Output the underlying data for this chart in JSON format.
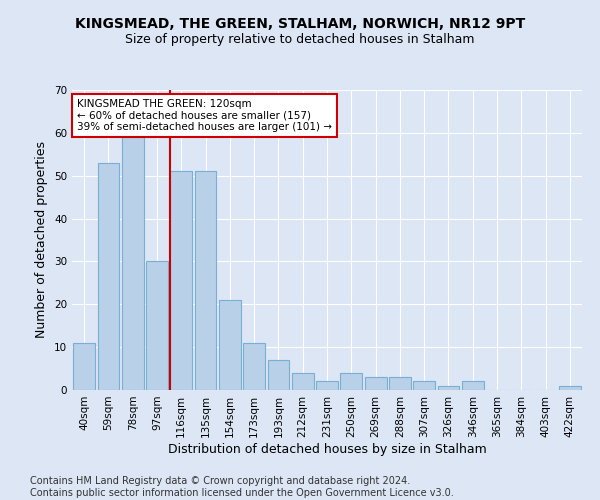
{
  "title1": "KINGSMEAD, THE GREEN, STALHAM, NORWICH, NR12 9PT",
  "title2": "Size of property relative to detached houses in Stalham",
  "xlabel": "Distribution of detached houses by size in Stalham",
  "ylabel": "Number of detached properties",
  "footnote": "Contains HM Land Registry data © Crown copyright and database right 2024.\nContains public sector information licensed under the Open Government Licence v3.0.",
  "categories": [
    "40sqm",
    "59sqm",
    "78sqm",
    "97sqm",
    "116sqm",
    "135sqm",
    "154sqm",
    "173sqm",
    "193sqm",
    "212sqm",
    "231sqm",
    "250sqm",
    "269sqm",
    "288sqm",
    "307sqm",
    "326sqm",
    "346sqm",
    "365sqm",
    "384sqm",
    "403sqm",
    "422sqm"
  ],
  "values": [
    11,
    53,
    59,
    30,
    51,
    51,
    21,
    11,
    7,
    4,
    2,
    4,
    3,
    3,
    2,
    1,
    2,
    0,
    0,
    0,
    1
  ],
  "bar_color": "#b8d0e8",
  "bar_edge_color": "#7aafd4",
  "highlight_label": "KINGSMEAD THE GREEN: 120sqm\n← 60% of detached houses are smaller (157)\n39% of semi-detached houses are larger (101) →",
  "annotation_box_color": "#ffffff",
  "annotation_box_edge": "#cc0000",
  "vline_color": "#cc0000",
  "vline_x_index": 4,
  "ylim": [
    0,
    70
  ],
  "yticks": [
    0,
    10,
    20,
    30,
    40,
    50,
    60,
    70
  ],
  "bg_color": "#dce6f5",
  "grid_color": "#ffffff",
  "title1_fontsize": 10,
  "title2_fontsize": 9,
  "xlabel_fontsize": 9,
  "ylabel_fontsize": 9,
  "tick_fontsize": 7.5,
  "footnote_fontsize": 7
}
